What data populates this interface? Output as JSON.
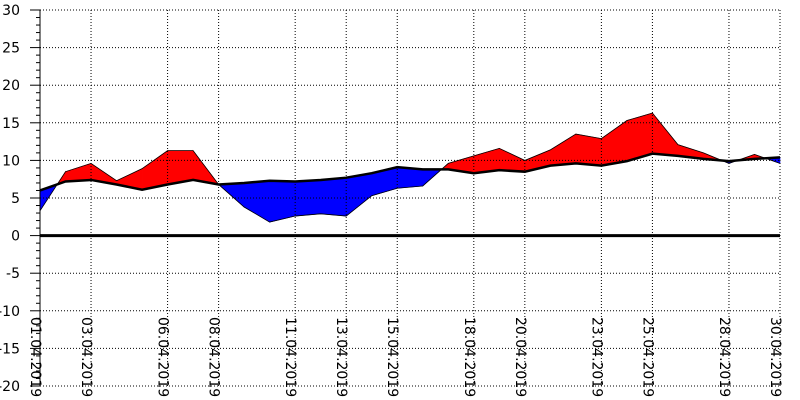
{
  "chart_data": {
    "type": "area",
    "title": "",
    "xlabel": "",
    "ylabel": "",
    "ylim": [
      -20,
      30
    ],
    "y_ticks": [
      30,
      25,
      20,
      15,
      10,
      5,
      0,
      -5,
      -10,
      -15,
      -20
    ],
    "x_tick_labels": [
      "01.04.2019",
      "03.04.2019",
      "06.04.2019",
      "08.04.2019",
      "11.04.2019",
      "13.04.2019",
      "15.04.2019",
      "18.04.2019",
      "20.04.2019",
      "23.04.2019",
      "25.04.2019",
      "28.04.2019",
      "30.04.2019"
    ],
    "x_ticks_day": [
      1,
      3,
      6,
      8,
      11,
      13,
      15,
      18,
      20,
      23,
      25,
      28,
      30
    ],
    "grid": true,
    "colors": {
      "above_reference": "#ff0000",
      "below_reference": "#0000ff",
      "reference_line": "#000000",
      "zero_line": "#000000",
      "grid": "#000000"
    },
    "series": [
      {
        "x_day": [
          1,
          2,
          3,
          4,
          5,
          6,
          7,
          8,
          9,
          10,
          11,
          12,
          13,
          14,
          15,
          16,
          17,
          18,
          19,
          20,
          21,
          22,
          23,
          24,
          25,
          26,
          27,
          28,
          29,
          30
        ],
        "values": [
          6.0,
          7.2,
          7.4,
          6.8,
          6.1,
          6.8,
          7.4,
          6.8,
          7.0,
          7.3,
          7.2,
          7.4,
          7.7,
          8.3,
          9.1,
          8.8,
          8.8,
          8.3,
          8.7,
          8.5,
          9.3,
          9.6,
          9.3,
          9.9,
          10.9,
          10.6,
          10.2,
          9.9,
          10.2,
          10.4
        ]
      },
      {
        "x_day": [
          1,
          2,
          3,
          4,
          5,
          6,
          7,
          8,
          9,
          10,
          11,
          12,
          13,
          14,
          15,
          16,
          17,
          18,
          19,
          20,
          21,
          22,
          23,
          24,
          25,
          26,
          27,
          28,
          29,
          30
        ],
        "values": [
          3.3,
          8.5,
          9.6,
          7.3,
          8.9,
          11.3,
          11.3,
          6.8,
          3.8,
          1.8,
          2.6,
          2.9,
          2.6,
          5.3,
          6.3,
          6.6,
          9.6,
          10.6,
          11.6,
          10.0,
          11.4,
          13.5,
          12.9,
          15.3,
          16.3,
          12.1,
          11.0,
          9.6,
          10.8,
          9.6
        ]
      }
    ]
  }
}
